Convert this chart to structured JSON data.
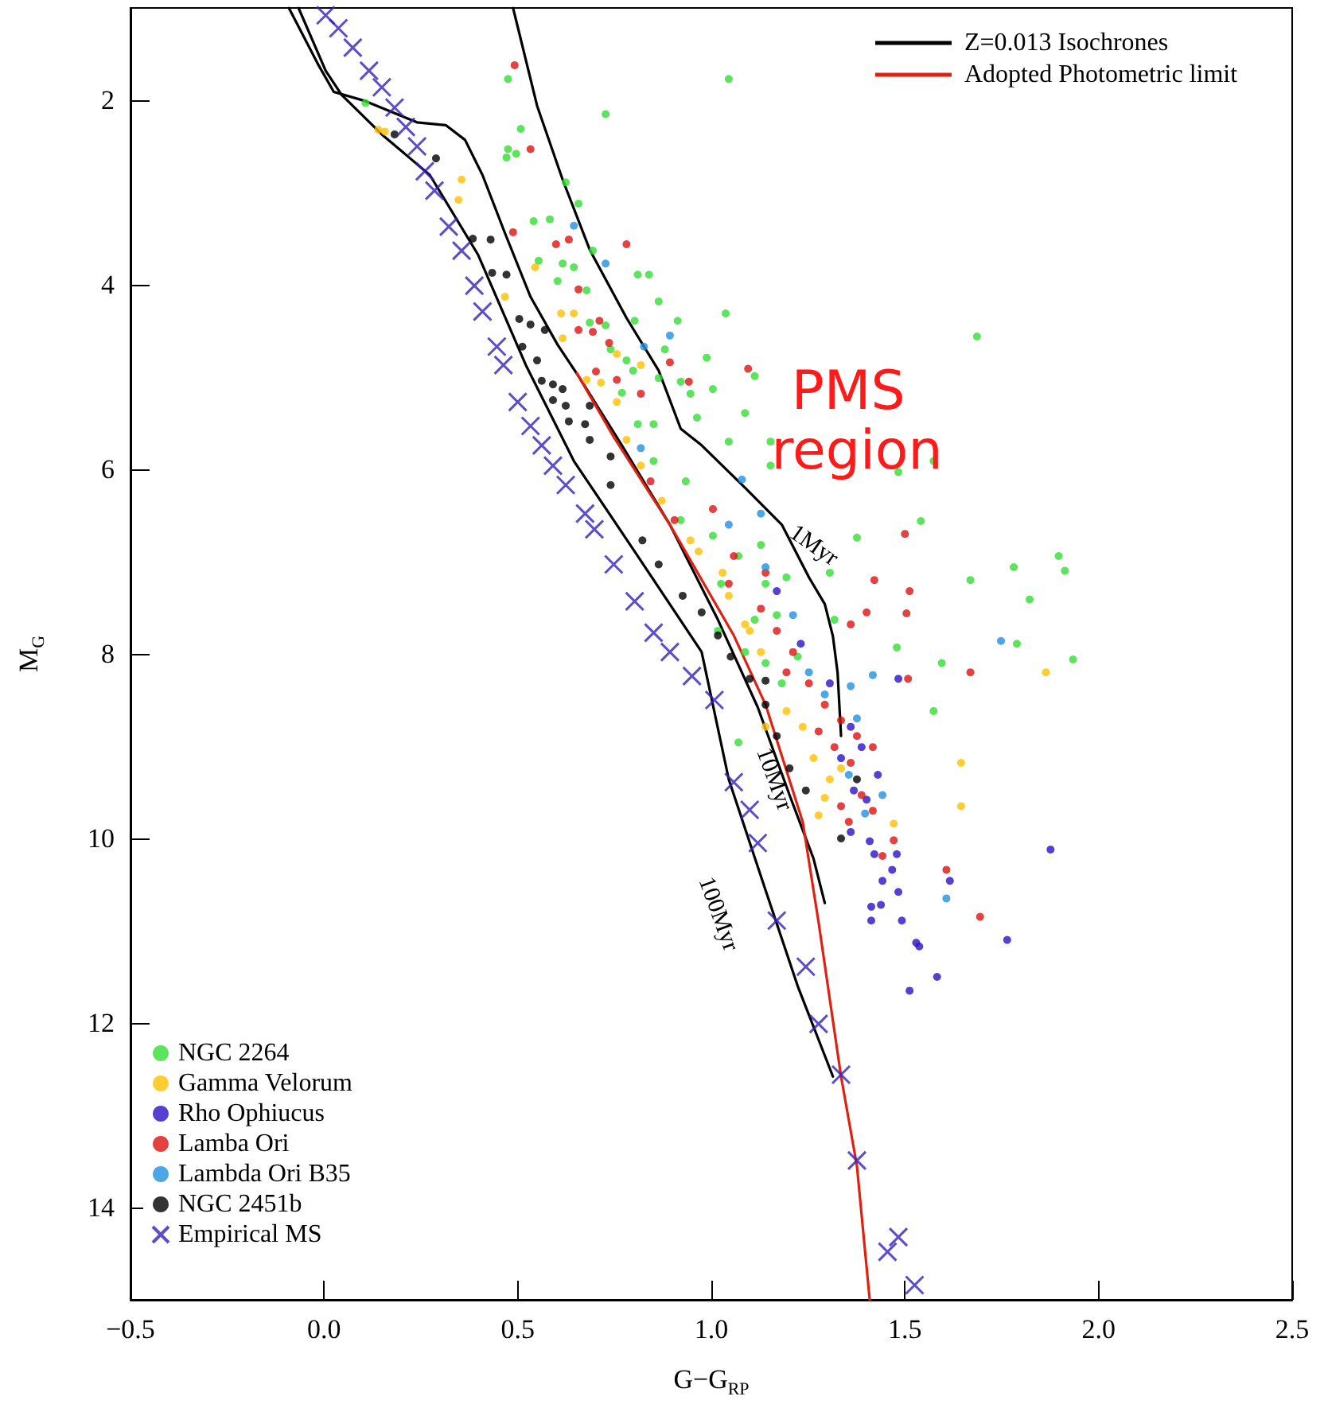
{
  "chart_data": {
    "type": "scatter",
    "xlabel": "G−G$_{RP}$",
    "ylabel": "M$_{G}$",
    "xlim": [
      -0.5,
      2.5
    ],
    "ylim": [
      15,
      1
    ],
    "xticks": [
      {
        "value": -0.5,
        "label": "−0.5"
      },
      {
        "value": 0,
        "label": "0.0"
      },
      {
        "value": 0.5,
        "label": "0.5"
      },
      {
        "value": 1,
        "label": "1.0"
      },
      {
        "value": 1.5,
        "label": "1.5"
      },
      {
        "value": 2,
        "label": "2.0"
      },
      {
        "value": 2.5,
        "label": "2.5"
      }
    ],
    "yticks": [
      2,
      4,
      6,
      8,
      10,
      12,
      14
    ],
    "grid": false,
    "legend": "top right",
    "annotations": [
      "1Myr",
      "10Myr",
      "100Myr",
      "PMS region"
    ],
    "series": [
      {
        "name": "NGC 2264",
        "marker": "circle",
        "color": "#33dd33",
        "x": [
          0.107,
          0.475,
          0.508,
          0.475,
          0.496,
          0.471,
          0.727,
          0.624,
          0.657,
          0.541,
          0.583,
          0.554,
          0.616,
          0.645,
          0.694,
          0.81,
          0.603,
          0.678,
          0.864,
          1.037,
          0.913,
          0.802,
          0.686,
          0.727,
          0.74,
          0.781,
          0.88,
          0.798,
          0.864,
          0.988,
          0.921,
          1.004,
          0.769,
          0.81,
          0.851,
          0.963,
          1.087,
          1.112,
          1.045,
          0.839,
          0.946,
          1.686,
          1.483,
          1.574,
          1.153,
          1.045,
          1.153,
          0.851,
          0.934,
          0.921,
          1.004,
          1.07,
          1.128,
          1.025,
          1.14,
          1.194,
          1.169,
          1.112,
          1.017,
          1.087,
          1.14,
          1.182,
          1.223,
          1.318,
          1.376,
          1.541,
          1.669,
          1.781,
          1.897,
          1.913,
          1.822,
          1.789,
          1.934,
          1.595,
          1.574,
          1.479,
          1.07,
          1.306
        ],
        "values": [
          2.03,
          1.77,
          2.31,
          2.53,
          2.58,
          2.62,
          2.15,
          2.89,
          3.12,
          3.31,
          3.29,
          3.74,
          3.77,
          3.81,
          3.63,
          3.89,
          3.96,
          4.06,
          4.18,
          4.31,
          4.39,
          4.39,
          4.41,
          4.44,
          4.7,
          4.82,
          4.7,
          4.93,
          5.01,
          4.79,
          5.05,
          5.13,
          5.17,
          5.51,
          5.51,
          5.44,
          5.39,
          4.99,
          1.77,
          3.89,
          5.18,
          4.56,
          6.03,
          5.91,
          5.7,
          5.7,
          5.96,
          5.91,
          6.13,
          6.55,
          6.72,
          6.94,
          6.82,
          7.24,
          7.24,
          7.17,
          7.58,
          7.63,
          7.75,
          7.98,
          8.1,
          8.32,
          8.03,
          7.63,
          6.74,
          6.56,
          7.2,
          7.06,
          6.94,
          7.1,
          7.41,
          7.89,
          8.06,
          8.1,
          8.62,
          7.93,
          8.96,
          7.12
        ]
      },
      {
        "name": "Gamma Velorum",
        "marker": "circle",
        "color": "#ffc000",
        "x": [
          0.14,
          0.157,
          0.355,
          0.347,
          0.545,
          0.467,
          0.612,
          0.645,
          0.616,
          0.678,
          0.715,
          0.756,
          0.818,
          0.756,
          0.781,
          0.818,
          0.872,
          0.946,
          0.967,
          1.029,
          1.045,
          1.087,
          1.128,
          1.099,
          1.194,
          1.14,
          1.236,
          1.264,
          1.306,
          1.335,
          1.293,
          1.277,
          1.645,
          1.645,
          1.864,
          1.471
        ],
        "values": [
          2.32,
          2.34,
          2.86,
          3.08,
          3.81,
          4.13,
          4.31,
          4.31,
          4.58,
          5.03,
          5.06,
          4.75,
          4.87,
          5.27,
          5.68,
          5.96,
          6.34,
          6.77,
          6.89,
          7.12,
          7.37,
          7.68,
          7.98,
          7.75,
          8.62,
          8.79,
          8.79,
          9.13,
          9.36,
          9.24,
          9.56,
          9.75,
          9.18,
          9.65,
          8.2,
          9.84
        ]
      },
      {
        "name": "Rho Ophiucus",
        "marker": "circle",
        "color": "#2a10c8",
        "x": [
          1.169,
          1.231,
          1.306,
          1.36,
          1.335,
          1.388,
          1.43,
          1.368,
          1.401,
          1.36,
          1.409,
          1.479,
          1.421,
          1.467,
          1.483,
          1.442,
          1.483,
          1.616,
          1.413,
          1.438,
          1.413,
          1.492,
          1.529,
          1.537,
          1.583,
          1.512,
          1.764,
          1.876
        ],
        "values": [
          7.32,
          7.89,
          8.32,
          8.79,
          9.13,
          9.01,
          9.31,
          9.48,
          9.58,
          9.93,
          10.03,
          10.17,
          10.17,
          10.34,
          8.27,
          10.46,
          10.58,
          10.46,
          10.74,
          10.72,
          10.89,
          10.89,
          11.13,
          11.17,
          11.5,
          11.65,
          11.1,
          10.12
        ]
      },
      {
        "name": "Lamba Ori",
        "marker": "circle",
        "color": "#dd1111",
        "x": [
          0.492,
          0.533,
          0.488,
          0.599,
          0.632,
          0.781,
          0.657,
          0.711,
          0.657,
          0.694,
          0.736,
          0.893,
          0.942,
          0.702,
          0.756,
          0.818,
          1.095,
          0.843,
          0.905,
          1.004,
          1.058,
          1.14,
          1.045,
          1.128,
          1.169,
          1.211,
          1.194,
          1.252,
          1.293,
          1.335,
          1.277,
          1.376,
          1.417,
          1.318,
          1.36,
          1.335,
          1.388,
          1.355,
          1.417,
          1.5,
          1.421,
          1.512,
          1.504,
          1.401,
          1.36,
          1.669,
          1.508,
          1.607,
          1.694,
          1.471,
          1.442
        ],
        "values": [
          1.62,
          2.53,
          3.43,
          3.56,
          3.51,
          3.56,
          4.05,
          4.39,
          4.49,
          4.51,
          4.63,
          4.84,
          5.05,
          4.94,
          5.03,
          5.18,
          4.91,
          6.13,
          6.55,
          6.43,
          6.94,
          7.12,
          7.24,
          7.51,
          7.75,
          7.98,
          8.2,
          8.32,
          8.55,
          8.72,
          8.84,
          8.89,
          9.01,
          9.01,
          9.18,
          9.65,
          9.53,
          9.82,
          9.7,
          6.7,
          7.2,
          7.32,
          7.56,
          7.55,
          7.68,
          8.2,
          8.27,
          10.34,
          10.85,
          10.02,
          10.19
        ]
      },
      {
        "name": "Lambda Ori B35",
        "marker": "circle",
        "color": "#2090e0",
        "x": [
          0.645,
          0.727,
          0.893,
          0.826,
          0.818,
          1.128,
          1.079,
          1.045,
          1.14,
          1.211,
          1.252,
          1.293,
          1.36,
          1.376,
          1.417,
          1.748,
          1.355,
          1.442,
          1.397,
          1.607
        ],
        "values": [
          3.36,
          3.77,
          4.55,
          4.67,
          5.77,
          6.48,
          6.11,
          6.6,
          7.06,
          7.58,
          8.2,
          8.44,
          8.35,
          8.7,
          8.23,
          7.86,
          9.31,
          9.53,
          9.73,
          10.65
        ]
      },
      {
        "name": "NGC 2451b",
        "marker": "circle",
        "color": "#000000",
        "x": [
          0.182,
          0.289,
          0.384,
          0.43,
          0.434,
          0.471,
          0.504,
          0.533,
          0.57,
          0.512,
          0.55,
          0.562,
          0.591,
          0.616,
          0.591,
          0.624,
          0.686,
          0.632,
          0.674,
          0.686,
          0.74,
          0.74,
          0.822,
          0.864,
          0.926,
          0.975,
          1.017,
          1.05,
          1.099,
          1.14,
          1.14,
          1.169,
          1.202,
          1.244,
          1.376,
          1.335
        ],
        "values": [
          2.37,
          2.63,
          3.5,
          3.51,
          3.87,
          3.89,
          4.37,
          4.43,
          4.49,
          4.67,
          4.82,
          5.04,
          5.08,
          5.13,
          5.25,
          5.31,
          5.31,
          5.48,
          5.51,
          5.68,
          5.86,
          6.17,
          6.77,
          7.03,
          7.37,
          7.55,
          7.8,
          8.03,
          8.27,
          8.29,
          8.55,
          8.89,
          9.24,
          9.48,
          9.36,
          10.0
        ]
      },
      {
        "name": "Empirical MS",
        "marker": "cross",
        "color": "#3322bb",
        "x": [
          0.004,
          0.037,
          0.074,
          0.116,
          0.149,
          0.182,
          0.211,
          0.24,
          0.26,
          0.285,
          0.322,
          0.355,
          0.388,
          0.409,
          0.446,
          0.463,
          0.5,
          0.533,
          0.562,
          0.591,
          0.624,
          0.674,
          0.698,
          0.748,
          0.802,
          0.851,
          0.893,
          0.95,
          1.008,
          1.058,
          1.099,
          1.12,
          1.169,
          1.244,
          1.277,
          1.335,
          1.376,
          1.483,
          1.455,
          1.525
        ],
        "values": [
          1.08,
          1.22,
          1.43,
          1.68,
          1.86,
          2.08,
          2.29,
          2.5,
          2.77,
          2.98,
          3.37,
          3.63,
          4.01,
          4.29,
          4.67,
          4.87,
          5.27,
          5.53,
          5.74,
          5.96,
          6.17,
          6.48,
          6.65,
          7.03,
          7.43,
          7.77,
          7.98,
          8.24,
          8.5,
          9.39,
          9.69,
          10.05,
          10.89,
          11.39,
          12.01,
          12.56,
          13.49,
          14.32,
          14.48,
          14.84
        ]
      },
      {
        "name": "Z=0.013 Isochrones",
        "type": "line",
        "marker": "none",
        "line_style": "solid",
        "color": "#000000",
        "x": [
          0.488,
          0.55,
          0.616,
          0.686,
          0.781,
          0.864,
          0.921,
          0.975,
          1.087,
          1.182,
          1.252,
          1.293,
          1.314,
          1.326,
          1.335
        ],
        "values": [
          1.0,
          2.06,
          2.86,
          3.62,
          4.36,
          4.93,
          5.56,
          5.74,
          6.2,
          6.6,
          7.17,
          7.46,
          7.81,
          8.2,
          8.89
        ]
      },
      {
        "type": "line",
        "marker": "none",
        "line_style": "solid",
        "color": "#000000",
        "x": [
          -0.091,
          -0.017,
          0.025,
          0.107,
          0.24,
          0.314,
          0.364,
          0.409,
          0.467,
          0.533,
          0.603,
          0.657,
          0.769,
          0.893,
          1.017,
          1.12,
          1.202,
          1.264,
          1.293
        ],
        "values": [
          1.0,
          1.6,
          1.91,
          2.01,
          2.24,
          2.27,
          2.43,
          2.81,
          3.44,
          4.13,
          4.65,
          4.99,
          5.74,
          6.6,
          7.63,
          8.58,
          9.53,
          10.22,
          10.7
        ]
      },
      {
        "type": "line",
        "marker": "none",
        "line_style": "solid",
        "color": "#000000",
        "x": [
          -0.066,
          0.004,
          0.045,
          0.149,
          0.273,
          0.397,
          0.521,
          0.645,
          0.81,
          0.975,
          1.045,
          1.14,
          1.223,
          1.314
        ],
        "values": [
          1.0,
          1.68,
          1.94,
          2.37,
          2.81,
          3.67,
          4.87,
          5.91,
          6.94,
          7.98,
          9.36,
          10.56,
          11.6,
          12.58
        ]
      },
      {
        "name": "Adopted Photometric limit",
        "type": "line",
        "marker": "none",
        "line_style": "solid",
        "color": "#e02010",
        "x": [
          0.653,
          0.748,
          0.893,
          1.058,
          1.14,
          1.236,
          1.277,
          1.335,
          1.376,
          1.409
        ],
        "values": [
          4.96,
          5.65,
          6.6,
          7.8,
          8.55,
          9.82,
          10.91,
          12.58,
          13.55,
          15.0
        ]
      }
    ]
  }
}
